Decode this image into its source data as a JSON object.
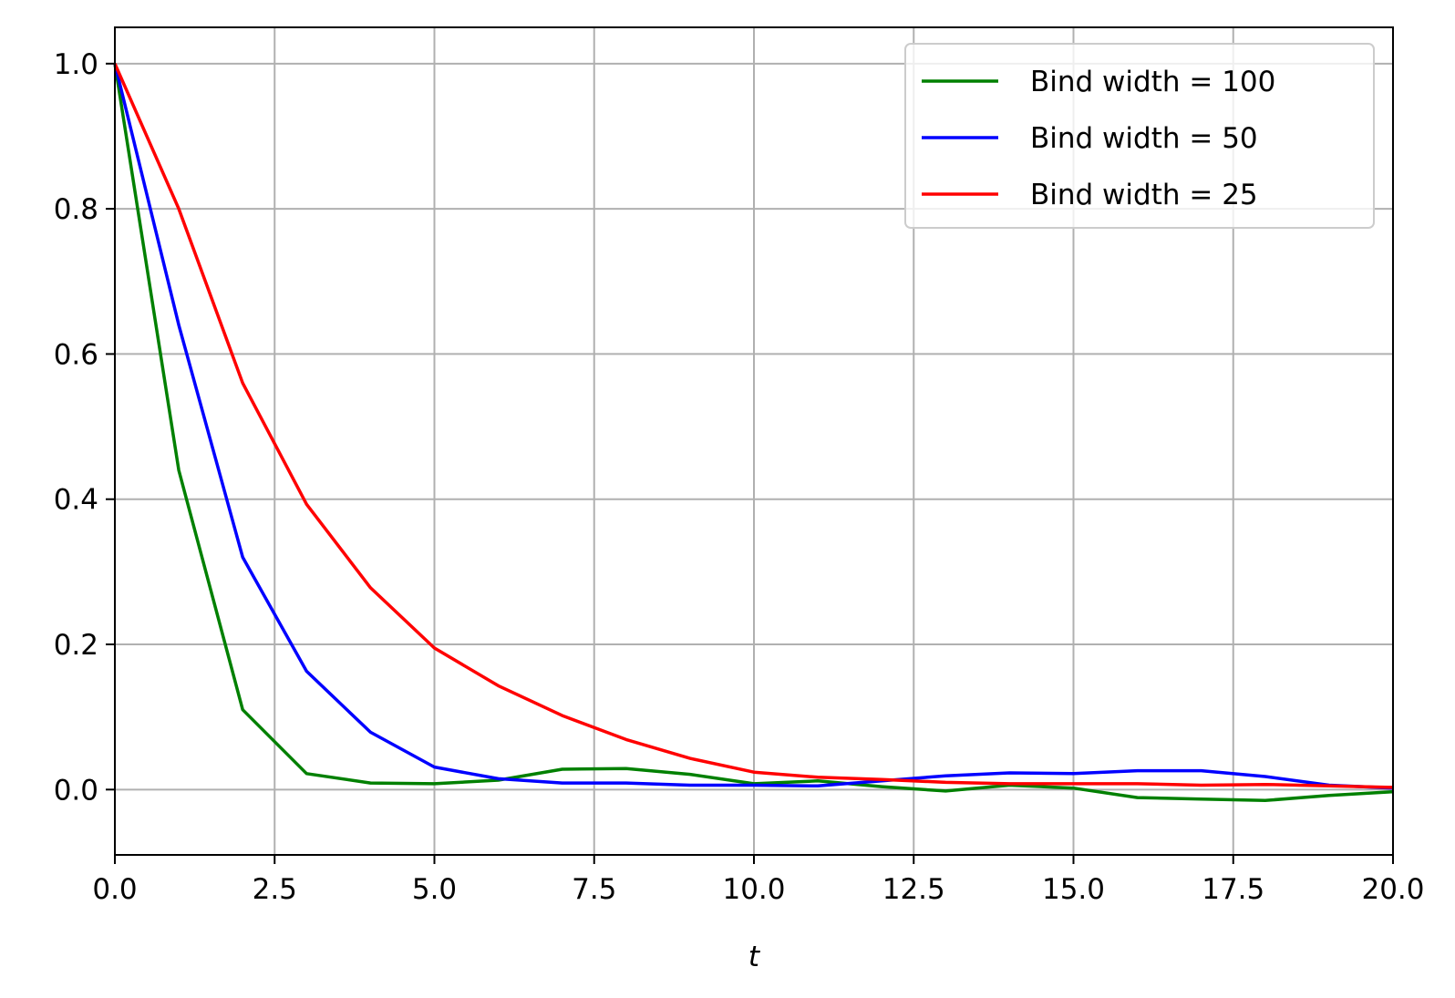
{
  "chart_data": {
    "type": "line",
    "title": "",
    "xlabel": "t",
    "ylabel": "",
    "xlim": [
      0,
      20
    ],
    "ylim": [
      -0.09,
      1.05
    ],
    "xticks": [
      0,
      2.5,
      5,
      7.5,
      10,
      12.5,
      15,
      17.5,
      20
    ],
    "xtick_labels": [
      "0.0",
      "2.5",
      "5.0",
      "7.5",
      "10.0",
      "12.5",
      "15.0",
      "17.5",
      "20.0"
    ],
    "yticks": [
      0,
      0.2,
      0.4,
      0.6,
      0.8,
      1.0
    ],
    "ytick_labels": [
      "0.0",
      "0.2",
      "0.4",
      "0.6",
      "0.8",
      "1.0"
    ],
    "grid": true,
    "legend_position": "top-right",
    "x": [
      0,
      1,
      2,
      3,
      4,
      5,
      6,
      7,
      8,
      9,
      10,
      11,
      12,
      13,
      14,
      15,
      16,
      17,
      18,
      19,
      20
    ],
    "series": [
      {
        "name": "Bind width = 100",
        "color": "#008000",
        "values": [
          1.0,
          0.44,
          0.11,
          0.022,
          0.009,
          0.008,
          0.013,
          0.028,
          0.029,
          0.021,
          0.008,
          0.012,
          0.004,
          -0.002,
          0.006,
          0.002,
          -0.011,
          -0.013,
          -0.015,
          -0.008,
          -0.003
        ]
      },
      {
        "name": "Bind width = 50",
        "color": "#0000ff",
        "values": [
          1.0,
          0.64,
          0.32,
          0.163,
          0.079,
          0.031,
          0.015,
          0.009,
          0.009,
          0.006,
          0.006,
          0.005,
          0.012,
          0.019,
          0.023,
          0.022,
          0.026,
          0.026,
          0.018,
          0.006,
          0.002
        ]
      },
      {
        "name": "Bind width = 25",
        "color": "#ff0000",
        "values": [
          1.0,
          0.8,
          0.56,
          0.393,
          0.278,
          0.195,
          0.143,
          0.102,
          0.069,
          0.043,
          0.024,
          0.017,
          0.014,
          0.01,
          0.008,
          0.008,
          0.008,
          0.006,
          0.007,
          0.005,
          0.003
        ]
      }
    ]
  }
}
